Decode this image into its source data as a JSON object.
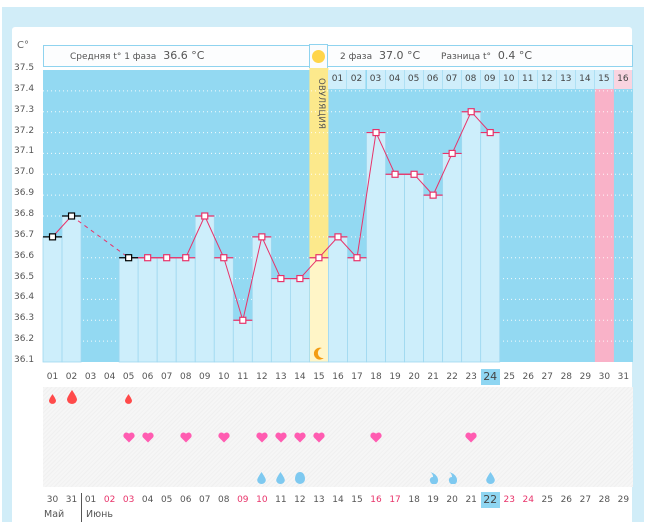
{
  "colors": {
    "plot_bg": "#93d9f2",
    "bar": "#cdeefb",
    "line": "#e8336a",
    "ovulation": "#fce98c",
    "highlight_day": "#f9b2c8",
    "heart": "#ff5cb1",
    "blood": "#ff4a4a",
    "drop": "#7ec9f0"
  },
  "header": {
    "unit": "C°",
    "phase1_label": "Средняя t° 1 фаза",
    "phase1_value": "36.6 °C",
    "phase2_label": "2 фаза",
    "phase2_value": "37.0 °C",
    "diff_label": "Разница t°",
    "diff_value": "0.4 °C",
    "ovulation_label": "ОВУЛЯЦИЯ",
    "sun_icon": "sun-icon",
    "moon_icon": "moon-icon"
  },
  "chart_data": {
    "type": "bar",
    "title": "",
    "xlabel": "",
    "ylabel": "C°",
    "ylim": [
      36.1,
      37.5
    ],
    "yticks": [
      "37.5",
      "37.4",
      "37.3",
      "37.2",
      "37.1",
      "37.0",
      "36.9",
      "36.8",
      "36.7",
      "36.6",
      "36.5",
      "36.4",
      "36.3",
      "36.2",
      "36.1"
    ],
    "grid": true,
    "categories": [
      "01",
      "02",
      "03",
      "04",
      "05",
      "06",
      "07",
      "08",
      "09",
      "10",
      "11",
      "12",
      "13",
      "14",
      "15",
      "16",
      "17",
      "18",
      "19",
      "20",
      "21",
      "22",
      "23",
      "24",
      "25",
      "26",
      "27",
      "28",
      "29",
      "30",
      "31"
    ],
    "series": [
      {
        "name": "temperature",
        "values": [
          36.7,
          36.8,
          null,
          null,
          36.6,
          36.6,
          36.6,
          36.6,
          36.8,
          36.6,
          36.3,
          36.7,
          36.5,
          36.5,
          36.6,
          36.7,
          36.6,
          37.2,
          37.0,
          37.0,
          36.9,
          37.1,
          37.3,
          37.2,
          null,
          null,
          null,
          null,
          null,
          null,
          null
        ]
      }
    ],
    "menstrual_marker_days": [
      1,
      2,
      5
    ],
    "dashed_segment": [
      2,
      5
    ],
    "ovulation_day": 15,
    "phase2_start_day": 16,
    "phase2_day_numbers": [
      "01",
      "02",
      "03",
      "04",
      "05",
      "06",
      "07",
      "08",
      "09",
      "10",
      "11",
      "12",
      "13",
      "14",
      "15",
      "16"
    ],
    "phase2_highlight_index": 15,
    "current_cycle_day": 24
  },
  "symbols": {
    "blood": [
      {
        "day": 1,
        "size": "small"
      },
      {
        "day": 2,
        "size": "large"
      },
      {
        "day": 5,
        "size": "small"
      }
    ],
    "hearts": [
      5,
      6,
      8,
      10,
      12,
      13,
      14,
      15,
      18,
      23
    ],
    "drops": [
      {
        "day": 12,
        "type": "drop"
      },
      {
        "day": 13,
        "type": "drop"
      },
      {
        "day": 14,
        "type": "round"
      },
      {
        "day": 21,
        "type": "curl"
      },
      {
        "day": 22,
        "type": "curl"
      },
      {
        "day": 24,
        "type": "drop"
      }
    ]
  },
  "calendar": {
    "dates": [
      "30",
      "31",
      "01",
      "02",
      "03",
      "04",
      "05",
      "06",
      "07",
      "08",
      "09",
      "10",
      "11",
      "12",
      "13",
      "14",
      "15",
      "16",
      "17",
      "18",
      "19",
      "20",
      "21",
      "22",
      "23",
      "24",
      "25",
      "26",
      "27",
      "28",
      "29"
    ],
    "red_indices": [
      3,
      4,
      10,
      11,
      17,
      18,
      24,
      25
    ],
    "current_index": 23,
    "months": [
      "Май",
      "Июнь"
    ]
  }
}
